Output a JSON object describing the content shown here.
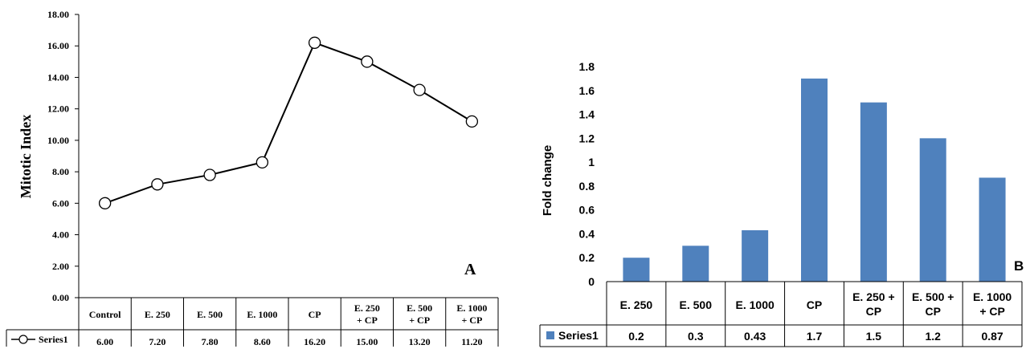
{
  "chart_data": [
    {
      "type": "line",
      "panel_label": "A",
      "ylabel": "Mitotic Index",
      "ylim": [
        0,
        18
      ],
      "y_ticks": [
        "0.00",
        "2.00",
        "4.00",
        "6.00",
        "8.00",
        "10.00",
        "12.00",
        "14.00",
        "16.00",
        "18.00"
      ],
      "categories": [
        [
          "Control"
        ],
        [
          "E. 250"
        ],
        [
          "E. 500"
        ],
        [
          "E. 1000"
        ],
        [
          "CP"
        ],
        [
          "E. 250",
          "+ CP"
        ],
        [
          "E. 500",
          "+ CP"
        ],
        [
          "E. 1000",
          "+ CP"
        ]
      ],
      "series": [
        {
          "name": "Series1",
          "values": [
            6.0,
            7.2,
            7.8,
            8.6,
            16.2,
            15.0,
            13.2,
            11.2
          ],
          "value_labels": [
            "6.00",
            "7.20",
            "7.80",
            "8.60",
            "16.20",
            "15.00",
            "13.20",
            "11.20"
          ]
        }
      ],
      "grid": false,
      "legend": "data-table",
      "marker": "open-circle",
      "color": "#000000"
    },
    {
      "type": "bar",
      "panel_label": "B",
      "ylabel": "Fold change",
      "ylim": [
        0,
        1.8
      ],
      "y_ticks": [
        "0",
        "0.2",
        "0.4",
        "0.6",
        "0.8",
        "1",
        "1.2",
        "1.4",
        "1.6",
        "1.8"
      ],
      "categories": [
        [
          "E. 250"
        ],
        [
          "E. 500"
        ],
        [
          "E. 1000"
        ],
        [
          "CP"
        ],
        [
          "E. 250 +",
          "CP"
        ],
        [
          "E. 500 +",
          "CP"
        ],
        [
          "E. 1000",
          "+ CP"
        ]
      ],
      "series": [
        {
          "name": "Series1",
          "values": [
            0.2,
            0.3,
            0.43,
            1.7,
            1.5,
            1.2,
            0.87
          ],
          "value_labels": [
            "0.2",
            "0.3",
            "0.43",
            "1.7",
            "1.5",
            "1.2",
            "0.87"
          ]
        }
      ],
      "grid": false,
      "legend": "data-table",
      "color": "#4f81bd"
    }
  ]
}
